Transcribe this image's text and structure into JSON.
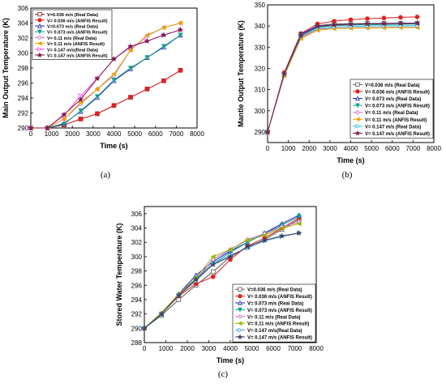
{
  "captions": [
    "(a)",
    "(b)",
    "(c)"
  ],
  "chart_data": [
    {
      "type": "line",
      "panel": "a",
      "xlabel": "Time (s)",
      "ylabel": "Main Output Temperature (K)",
      "xlim": [
        0,
        8000
      ],
      "ylim": [
        290,
        306
      ],
      "xticks": [
        0,
        1000,
        2000,
        3000,
        4000,
        5000,
        6000,
        7000,
        8000
      ],
      "yticks": [
        290,
        292,
        294,
        296,
        298,
        300,
        302,
        304,
        306
      ],
      "grid": false,
      "legend_position": "top-left",
      "x": [
        0,
        800,
        1600,
        2400,
        3200,
        4000,
        4800,
        5600,
        6400,
        7200
      ],
      "series": [
        {
          "name": "V=0.036 m/s (Real Data)",
          "color": "#8b2020",
          "marker": "square-open",
          "values": [
            290.0,
            290.0,
            290.4,
            291.2,
            291.9,
            293.0,
            294.1,
            295.2,
            296.3,
            297.7
          ]
        },
        {
          "name": "V= 0.036 m/s (ANFIS Result)",
          "color": "#e02020",
          "marker": "circle",
          "values": [
            290.0,
            290.0,
            290.4,
            291.2,
            291.9,
            293.0,
            294.1,
            295.2,
            296.3,
            297.7
          ]
        },
        {
          "name": "V=0.073 m/s (Real Data)",
          "color": "#2020c0",
          "marker": "triangle-open",
          "values": [
            290.0,
            290.0,
            290.6,
            292.2,
            294.1,
            296.3,
            297.9,
            299.4,
            300.8,
            302.4
          ]
        },
        {
          "name": "V= 0.073 m/s (ANFIS Result)",
          "color": "#14a090",
          "marker": "triangle-down",
          "values": [
            290.0,
            290.0,
            290.5,
            292.3,
            294.2,
            296.4,
            298.0,
            299.4,
            300.9,
            302.4
          ]
        },
        {
          "name": "V= 0.11 m/s (Real Data)",
          "color": "#c070c0",
          "marker": "diamond-open",
          "values": [
            290.0,
            290.0,
            291.2,
            293.2,
            295.2,
            297.0,
            300.4,
            302.3,
            303.4,
            304.0
          ]
        },
        {
          "name": "V= 0.11 m/s (ANFIS Result)",
          "color": "#f0a000",
          "marker": "triangle-left",
          "values": [
            290.0,
            290.0,
            291.2,
            293.4,
            295.2,
            297.2,
            300.4,
            302.4,
            303.4,
            304.0
          ]
        },
        {
          "name": "V= 0.147 m/s(Real Data)",
          "color": "#ff40ff",
          "marker": "triangle-right-open",
          "values": [
            290.0,
            290.0,
            291.7,
            294.3,
            296.6,
            299.2,
            300.8,
            301.6,
            302.4,
            303.1
          ]
        },
        {
          "name": "V= 0.147 m/s (ANFIS Result)",
          "color": "#7a1e48",
          "marker": "star",
          "values": [
            290.0,
            290.0,
            291.8,
            293.8,
            296.6,
            299.2,
            300.9,
            301.6,
            302.4,
            303.1
          ]
        }
      ]
    },
    {
      "type": "line",
      "panel": "b",
      "xlabel": "Time (s)",
      "ylabel": "Mantle Output Temperature (K)",
      "xlim": [
        0,
        8000
      ],
      "ylim": [
        285,
        350
      ],
      "xticks": [
        0,
        1000,
        2000,
        3000,
        4000,
        5000,
        6000,
        7000,
        8000
      ],
      "yticks": [
        290,
        300,
        310,
        320,
        330,
        340,
        350
      ],
      "grid": false,
      "legend_position": "bottom-right",
      "x": [
        0,
        800,
        1600,
        2400,
        3200,
        4000,
        4800,
        5600,
        6400,
        7200
      ],
      "series": [
        {
          "name": "V=0.036 m/s (Real Data)",
          "color": "#555555",
          "marker": "square-open",
          "values": [
            290.0,
            317.0,
            336.0,
            340.2,
            341.0,
            341.1,
            341.2,
            341.3,
            341.3,
            341.4
          ]
        },
        {
          "name": "V= 0.036 m/s (ANFIS Result)",
          "color": "#e02020",
          "marker": "circle",
          "values": [
            290.0,
            318.0,
            336.5,
            341.0,
            342.3,
            343.0,
            343.5,
            343.8,
            344.1,
            344.3
          ]
        },
        {
          "name": "V= 0.073 m/s (Real Data)",
          "color": "#2020c0",
          "marker": "triangle-open",
          "values": [
            290.0,
            317.0,
            336.2,
            340.0,
            340.5,
            340.8,
            341.0,
            341.2,
            341.3,
            341.4
          ]
        },
        {
          "name": "V= 0.073 m/s (ANFIS Result)",
          "color": "#14a090",
          "marker": "triangle-down",
          "values": [
            290.0,
            317.0,
            335.5,
            339.5,
            340.2,
            340.5,
            340.6,
            340.7,
            340.8,
            340.9
          ]
        },
        {
          "name": "V= 0.11 m/s (Real Data)",
          "color": "#c070c0",
          "marker": "diamond-open",
          "values": [
            290.0,
            316.5,
            334.5,
            338.5,
            339.0,
            339.2,
            339.3,
            339.4,
            339.5,
            339.5
          ]
        },
        {
          "name": "V= 0.11 m/s (ANFIS Result)",
          "color": "#f0a000",
          "marker": "triangle-left",
          "values": [
            290.0,
            316.5,
            334.0,
            338.0,
            338.8,
            339.0,
            339.1,
            339.2,
            339.3,
            339.3
          ]
        },
        {
          "name": "V= 0.147 m/s (Real Data)",
          "color": "#20c0e0",
          "marker": "triangle-right-open",
          "values": [
            290.0,
            317.0,
            335.0,
            339.0,
            339.6,
            339.8,
            340.0,
            340.1,
            340.1,
            340.2
          ]
        },
        {
          "name": "V= 0.147 m/s (ANFIS Result)",
          "color": "#7a1e48",
          "marker": "star",
          "values": [
            290.0,
            317.5,
            335.5,
            339.8,
            340.5,
            340.8,
            341.0,
            341.1,
            341.2,
            341.3
          ]
        }
      ]
    },
    {
      "type": "line",
      "panel": "c",
      "xlabel": "Time (s)",
      "ylabel": "Stored Water Temperature (K)",
      "xlim": [
        0,
        8000
      ],
      "ylim": [
        288,
        307
      ],
      "xticks": [
        0,
        1000,
        2000,
        3000,
        4000,
        5000,
        6000,
        7000,
        8000
      ],
      "yticks": [
        288,
        290,
        292,
        294,
        296,
        298,
        300,
        302,
        304,
        306
      ],
      "grid": false,
      "legend_position": "bottom-right",
      "x": [
        0,
        800,
        1600,
        2400,
        3200,
        4000,
        4800,
        5600,
        6400,
        7200
      ],
      "series": [
        {
          "name": "V=0.036 m/s (Real Data)",
          "color": "#555555",
          "marker": "square-open",
          "values": [
            290.0,
            291.8,
            294.0,
            296.0,
            297.9,
            300.0,
            301.3,
            302.4,
            303.8,
            305.2
          ]
        },
        {
          "name": "V= 0.036 m/s (ANFIS Result)",
          "color": "#e02020",
          "marker": "circle",
          "values": [
            290.0,
            292.0,
            294.5,
            296.2,
            297.2,
            299.6,
            301.5,
            302.6,
            304.0,
            305.4
          ]
        },
        {
          "name": "V= 0.073 m/s (Real Data)",
          "color": "#2020c0",
          "marker": "triangle-open",
          "values": [
            290.0,
            292.0,
            294.8,
            297.4,
            299.3,
            300.8,
            302.0,
            303.3,
            304.6,
            305.8
          ]
        },
        {
          "name": "V= 0.073 m/s (ANFIS Result)",
          "color": "#14a090",
          "marker": "triangle-down",
          "values": [
            290.0,
            292.0,
            294.6,
            297.0,
            299.0,
            300.6,
            302.0,
            303.2,
            304.4,
            305.6
          ]
        },
        {
          "name": "V= 0.11 m/s (Real Data)",
          "color": "#c070c0",
          "marker": "diamond-open",
          "values": [
            290.0,
            292.1,
            294.7,
            296.8,
            299.6,
            301.0,
            302.4,
            303.2,
            304.2,
            304.8
          ]
        },
        {
          "name": "V= 0.11 m/s (ANFIS Result)",
          "color": "#a0b000",
          "marker": "triangle-left",
          "values": [
            290.0,
            292.2,
            294.8,
            297.0,
            300.0,
            301.0,
            302.3,
            303.0,
            304.0,
            304.6
          ]
        },
        {
          "name": "V= 0.147 m/s(Real Data)",
          "color": "#40a0e0",
          "marker": "triangle-right-open",
          "values": [
            290.0,
            292.0,
            294.6,
            296.6,
            299.0,
            300.2,
            301.2,
            302.2,
            302.8,
            303.3
          ]
        },
        {
          "name": "V= 0.147 m/s (ANFIS Result)",
          "color": "#404060",
          "marker": "star",
          "values": [
            290.0,
            292.0,
            294.6,
            296.8,
            298.9,
            300.0,
            301.4,
            302.3,
            302.9,
            303.3
          ]
        }
      ]
    }
  ]
}
